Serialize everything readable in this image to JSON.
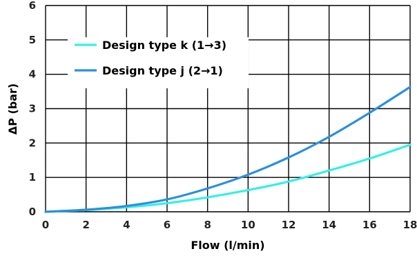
{
  "chart_data": {
    "type": "line",
    "title": "",
    "xlabel": "Flow (l/min)",
    "ylabel": "ΔP (bar)",
    "xlim": [
      0,
      18
    ],
    "ylim": [
      0,
      6
    ],
    "x_ticks": [
      "0",
      "2",
      "4",
      "6",
      "8",
      "10",
      "12",
      "14",
      "16",
      "18"
    ],
    "y_ticks": [
      "0",
      "1",
      "2",
      "3",
      "4",
      "5",
      "6"
    ],
    "grid": true,
    "legend_position": "top-left",
    "x": [
      0,
      2,
      4,
      6,
      8,
      10,
      12,
      14,
      16,
      18
    ],
    "series": [
      {
        "name": "Design type k (1→3)",
        "color": "#33f0e6",
        "values": [
          0,
          0.05,
          0.13,
          0.25,
          0.42,
          0.63,
          0.88,
          1.2,
          1.55,
          1.95
        ]
      },
      {
        "name": "Design type j (2→1)",
        "color": "#2b8fe0",
        "values": [
          0,
          0.06,
          0.17,
          0.36,
          0.68,
          1.08,
          1.58,
          2.18,
          2.88,
          3.63
        ]
      }
    ]
  }
}
